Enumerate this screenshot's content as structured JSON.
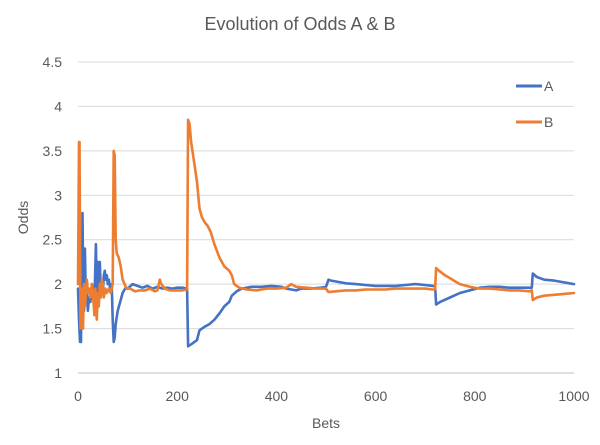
{
  "chart_data": {
    "type": "line",
    "title": "Evolution of Odds A & B",
    "xlabel": "Bets",
    "ylabel": "Odds",
    "xlim": [
      0,
      1000
    ],
    "ylim": [
      1,
      4.5
    ],
    "x_ticks": [
      "0",
      "200",
      "400",
      "600",
      "800",
      "1000"
    ],
    "y_ticks": [
      "1",
      "1.5",
      "2",
      "2.5",
      "3",
      "3.5",
      "4",
      "4.5"
    ],
    "grid": "horizontal",
    "legend_position": "top-right",
    "series": [
      {
        "name": "A",
        "color": "#4472C4",
        "points": [
          [
            0,
            1.95
          ],
          [
            2,
            1.6
          ],
          [
            4,
            1.35
          ],
          [
            6,
            1.35
          ],
          [
            7,
            2.3
          ],
          [
            8,
            1.9
          ],
          [
            9,
            2.8
          ],
          [
            10,
            2.2
          ],
          [
            12,
            1.7
          ],
          [
            14,
            2.4
          ],
          [
            16,
            1.8
          ],
          [
            18,
            1.9
          ],
          [
            20,
            1.7
          ],
          [
            22,
            1.85
          ],
          [
            25,
            1.8
          ],
          [
            28,
            2.0
          ],
          [
            30,
            1.95
          ],
          [
            32,
            1.8
          ],
          [
            34,
            2.0
          ],
          [
            36,
            2.45
          ],
          [
            38,
            1.9
          ],
          [
            40,
            2.25
          ],
          [
            42,
            1.8
          ],
          [
            44,
            2.25
          ],
          [
            46,
            1.9
          ],
          [
            48,
            2.0
          ],
          [
            50,
            1.9
          ],
          [
            52,
            2.1
          ],
          [
            54,
            2.15
          ],
          [
            56,
            2.05
          ],
          [
            58,
            2.1
          ],
          [
            60,
            2.0
          ],
          [
            62,
            2.05
          ],
          [
            65,
            1.95
          ],
          [
            68,
            2.0
          ],
          [
            70,
            1.6
          ],
          [
            72,
            1.35
          ],
          [
            74,
            1.4
          ],
          [
            76,
            1.55
          ],
          [
            80,
            1.7
          ],
          [
            85,
            1.8
          ],
          [
            90,
            1.9
          ],
          [
            95,
            1.95
          ],
          [
            100,
            1.95
          ],
          [
            110,
            2.0
          ],
          [
            120,
            1.98
          ],
          [
            130,
            1.96
          ],
          [
            140,
            1.98
          ],
          [
            150,
            1.95
          ],
          [
            160,
            1.97
          ],
          [
            170,
            1.95
          ],
          [
            180,
            1.96
          ],
          [
            190,
            1.95
          ],
          [
            200,
            1.96
          ],
          [
            210,
            1.96
          ],
          [
            220,
            1.95
          ],
          [
            222,
            1.3
          ],
          [
            230,
            1.33
          ],
          [
            240,
            1.37
          ],
          [
            245,
            1.48
          ],
          [
            255,
            1.52
          ],
          [
            265,
            1.55
          ],
          [
            275,
            1.6
          ],
          [
            285,
            1.67
          ],
          [
            295,
            1.75
          ],
          [
            305,
            1.8
          ],
          [
            310,
            1.87
          ],
          [
            320,
            1.92
          ],
          [
            330,
            1.95
          ],
          [
            350,
            1.97
          ],
          [
            370,
            1.97
          ],
          [
            390,
            1.98
          ],
          [
            410,
            1.97
          ],
          [
            420,
            1.95
          ],
          [
            430,
            1.94
          ],
          [
            440,
            1.93
          ],
          [
            450,
            1.95
          ],
          [
            470,
            1.95
          ],
          [
            490,
            1.96
          ],
          [
            500,
            1.97
          ],
          [
            505,
            2.05
          ],
          [
            510,
            2.04
          ],
          [
            520,
            2.03
          ],
          [
            540,
            2.01
          ],
          [
            560,
            2.0
          ],
          [
            580,
            1.99
          ],
          [
            600,
            1.98
          ],
          [
            620,
            1.98
          ],
          [
            640,
            1.98
          ],
          [
            660,
            1.99
          ],
          [
            680,
            2.0
          ],
          [
            700,
            1.99
          ],
          [
            715,
            1.98
          ],
          [
            720,
            1.98
          ],
          [
            722,
            1.77
          ],
          [
            730,
            1.8
          ],
          [
            750,
            1.85
          ],
          [
            770,
            1.9
          ],
          [
            790,
            1.93
          ],
          [
            810,
            1.96
          ],
          [
            830,
            1.97
          ],
          [
            850,
            1.97
          ],
          [
            870,
            1.96
          ],
          [
            890,
            1.96
          ],
          [
            910,
            1.96
          ],
          [
            915,
            1.96
          ],
          [
            917,
            2.12
          ],
          [
            925,
            2.08
          ],
          [
            940,
            2.05
          ],
          [
            960,
            2.04
          ],
          [
            980,
            2.02
          ],
          [
            1000,
            2.0
          ]
        ]
      },
      {
        "name": "B",
        "color": "#ED7D31",
        "points": [
          [
            0,
            2.0
          ],
          [
            2,
            3.6
          ],
          [
            3,
            3.6
          ],
          [
            4,
            2.5
          ],
          [
            5,
            1.5
          ],
          [
            7,
            1.7
          ],
          [
            8,
            1.95
          ],
          [
            10,
            1.5
          ],
          [
            12,
            2.0
          ],
          [
            14,
            1.75
          ],
          [
            16,
            1.9
          ],
          [
            18,
            2.05
          ],
          [
            20,
            1.9
          ],
          [
            22,
            1.95
          ],
          [
            25,
            1.85
          ],
          [
            28,
            2.0
          ],
          [
            30,
            1.9
          ],
          [
            33,
            1.65
          ],
          [
            35,
            1.95
          ],
          [
            38,
            1.6
          ],
          [
            40,
            1.9
          ],
          [
            42,
            1.75
          ],
          [
            44,
            2.0
          ],
          [
            46,
            1.85
          ],
          [
            48,
            2.05
          ],
          [
            50,
            2.0
          ],
          [
            52,
            1.85
          ],
          [
            55,
            1.95
          ],
          [
            58,
            1.9
          ],
          [
            62,
            1.95
          ],
          [
            66,
            1.9
          ],
          [
            70,
            2.0
          ],
          [
            72,
            3.5
          ],
          [
            74,
            3.45
          ],
          [
            76,
            2.5
          ],
          [
            78,
            2.35
          ],
          [
            82,
            2.3
          ],
          [
            86,
            2.2
          ],
          [
            90,
            2.05
          ],
          [
            94,
            2.0
          ],
          [
            98,
            1.95
          ],
          [
            105,
            1.95
          ],
          [
            115,
            1.92
          ],
          [
            125,
            1.93
          ],
          [
            135,
            1.93
          ],
          [
            145,
            1.95
          ],
          [
            155,
            1.92
          ],
          [
            160,
            1.93
          ],
          [
            165,
            2.05
          ],
          [
            168,
            2.0
          ],
          [
            175,
            1.95
          ],
          [
            185,
            1.93
          ],
          [
            200,
            1.93
          ],
          [
            210,
            1.93
          ],
          [
            220,
            1.94
          ],
          [
            222,
            3.85
          ],
          [
            225,
            3.8
          ],
          [
            228,
            3.6
          ],
          [
            232,
            3.45
          ],
          [
            236,
            3.3
          ],
          [
            240,
            3.15
          ],
          [
            245,
            2.85
          ],
          [
            250,
            2.75
          ],
          [
            255,
            2.7
          ],
          [
            262,
            2.65
          ],
          [
            268,
            2.58
          ],
          [
            275,
            2.45
          ],
          [
            285,
            2.3
          ],
          [
            295,
            2.2
          ],
          [
            305,
            2.15
          ],
          [
            310,
            2.1
          ],
          [
            315,
            2.0
          ],
          [
            325,
            1.96
          ],
          [
            340,
            1.94
          ],
          [
            360,
            1.93
          ],
          [
            380,
            1.95
          ],
          [
            400,
            1.95
          ],
          [
            420,
            1.96
          ],
          [
            430,
            2.0
          ],
          [
            440,
            1.97
          ],
          [
            460,
            1.96
          ],
          [
            480,
            1.95
          ],
          [
            500,
            1.95
          ],
          [
            505,
            1.91
          ],
          [
            520,
            1.92
          ],
          [
            540,
            1.93
          ],
          [
            560,
            1.93
          ],
          [
            580,
            1.94
          ],
          [
            600,
            1.94
          ],
          [
            620,
            1.94
          ],
          [
            640,
            1.95
          ],
          [
            660,
            1.95
          ],
          [
            680,
            1.95
          ],
          [
            700,
            1.95
          ],
          [
            715,
            1.94
          ],
          [
            720,
            1.94
          ],
          [
            722,
            2.18
          ],
          [
            728,
            2.15
          ],
          [
            740,
            2.1
          ],
          [
            755,
            2.05
          ],
          [
            770,
            2.0
          ],
          [
            790,
            1.97
          ],
          [
            810,
            1.95
          ],
          [
            830,
            1.95
          ],
          [
            850,
            1.94
          ],
          [
            870,
            1.93
          ],
          [
            890,
            1.93
          ],
          [
            910,
            1.92
          ],
          [
            915,
            1.93
          ],
          [
            917,
            1.82
          ],
          [
            925,
            1.85
          ],
          [
            940,
            1.87
          ],
          [
            960,
            1.88
          ],
          [
            980,
            1.89
          ],
          [
            1000,
            1.9
          ]
        ]
      }
    ]
  }
}
